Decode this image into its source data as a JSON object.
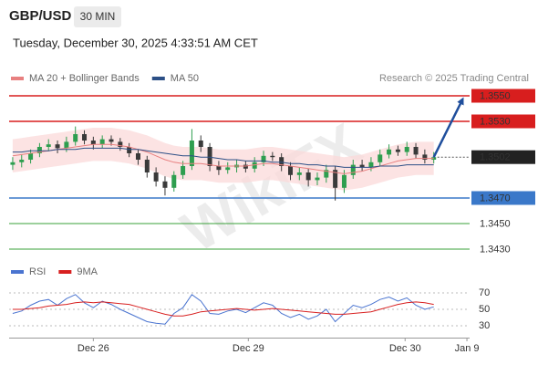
{
  "header": {
    "symbol": "GBP/USD",
    "timeframe": "30 MIN",
    "datetime": "Tuesday, December 30, 2025 4:33:51 AM CET",
    "watermark": "WikiFX"
  },
  "chart_data": [
    {
      "type": "candlestick",
      "source": "Research © 2025 Trading Central",
      "x": [
        0,
        1,
        2,
        3,
        4,
        5,
        6,
        7,
        8,
        9,
        10,
        11,
        12,
        13,
        14,
        15,
        16,
        17,
        18,
        19,
        20,
        21,
        22,
        23,
        24,
        25,
        26,
        27,
        28,
        29,
        30,
        31,
        32,
        33,
        34,
        35,
        36,
        37,
        38,
        39,
        40,
        41,
        42,
        43,
        44,
        45,
        46,
        47
      ],
      "xlim": [
        -0.4,
        51
      ],
      "ylim": [
        1.342,
        1.356
      ],
      "up_color": "#2e9e4f",
      "down_color": "#3a3a3a",
      "candles": {
        "open": [
          1.3496,
          1.3498,
          1.35,
          1.3505,
          1.351,
          1.3512,
          1.3509,
          1.3514,
          1.352,
          1.3515,
          1.3512,
          1.3516,
          1.3514,
          1.351,
          1.3505,
          1.35,
          1.349,
          1.3483,
          1.3478,
          1.3488,
          1.3495,
          1.3515,
          1.351,
          1.3495,
          1.3492,
          1.3494,
          1.3496,
          1.3493,
          1.3498,
          1.3503,
          1.3502,
          1.3495,
          1.3488,
          1.349,
          1.3484,
          1.3486,
          1.3492,
          1.3478,
          1.3488,
          1.3496,
          1.3494,
          1.3498,
          1.3504,
          1.3508,
          1.3506,
          1.351,
          1.3504,
          1.35
        ],
        "high": [
          1.3502,
          1.3504,
          1.3508,
          1.3513,
          1.3516,
          1.3515,
          1.3518,
          1.3526,
          1.3523,
          1.3518,
          1.3519,
          1.3519,
          1.3517,
          1.3513,
          1.3508,
          1.3503,
          1.3494,
          1.3487,
          1.3491,
          1.3499,
          1.3524,
          1.3519,
          1.3513,
          1.3499,
          1.3498,
          1.35,
          1.3499,
          1.3502,
          1.3507,
          1.3506,
          1.3505,
          1.3498,
          1.3494,
          1.3493,
          1.349,
          1.3496,
          1.3495,
          1.3492,
          1.35,
          1.35,
          1.3502,
          1.3508,
          1.3512,
          1.3511,
          1.3514,
          1.3513,
          1.3508,
          1.3506
        ],
        "low": [
          1.3492,
          1.3494,
          1.3497,
          1.3502,
          1.3507,
          1.3505,
          1.3506,
          1.3511,
          1.3512,
          1.3508,
          1.3509,
          1.3511,
          1.3507,
          1.3502,
          1.3496,
          1.3486,
          1.3479,
          1.3472,
          1.3475,
          1.3485,
          1.3492,
          1.3506,
          1.3491,
          1.3488,
          1.3489,
          1.349,
          1.349,
          1.349,
          1.3495,
          1.3499,
          1.3491,
          1.3484,
          1.3484,
          1.3479,
          1.348,
          1.3482,
          1.3468,
          1.3474,
          1.3485,
          1.3491,
          1.3491,
          1.3495,
          1.3501,
          1.3503,
          1.3503,
          1.3501,
          1.3497,
          1.3497
        ],
        "close": [
          1.3498,
          1.35,
          1.3505,
          1.351,
          1.3512,
          1.3509,
          1.3514,
          1.352,
          1.3515,
          1.3512,
          1.3516,
          1.3514,
          1.351,
          1.3505,
          1.35,
          1.349,
          1.3483,
          1.3478,
          1.3488,
          1.3495,
          1.3515,
          1.351,
          1.3495,
          1.3492,
          1.3494,
          1.3496,
          1.3493,
          1.3498,
          1.3503,
          1.3502,
          1.3495,
          1.3488,
          1.349,
          1.3484,
          1.3486,
          1.3492,
          1.3478,
          1.3488,
          1.3496,
          1.3494,
          1.3498,
          1.3504,
          1.3508,
          1.3506,
          1.351,
          1.3504,
          1.35,
          1.3502
        ]
      },
      "series": [
        {
          "name": "MA 20 + Bollinger Bands",
          "color": "#e88080",
          "band_color": "#fbdada",
          "values": [
            1.3503,
            1.3504,
            1.3505,
            1.3506,
            1.3507,
            1.3508,
            1.3509,
            1.351,
            1.3511,
            1.3512,
            1.3512,
            1.3512,
            1.3511,
            1.351,
            1.3508,
            1.3506,
            1.3503,
            1.35,
            1.3498,
            1.3497,
            1.3497,
            1.3497,
            1.3496,
            1.3495,
            1.3495,
            1.3495,
            1.3495,
            1.3496,
            1.3497,
            1.3497,
            1.3496,
            1.3495,
            1.3494,
            1.3493,
            1.3492,
            1.3491,
            1.349,
            1.3489,
            1.349,
            1.3491,
            1.3493,
            1.3495,
            1.3497,
            1.3499,
            1.35,
            1.3501,
            1.3501,
            1.3501
          ],
          "bands": {
            "upper": [
              1.3516,
              1.3517,
              1.3518,
              1.3519,
              1.352,
              1.3521,
              1.3522,
              1.3523,
              1.3524,
              1.3525,
              1.3525,
              1.3525,
              1.3524,
              1.3523,
              1.3521,
              1.3519,
              1.3516,
              1.3513,
              1.3511,
              1.351,
              1.351,
              1.351,
              1.3509,
              1.3508,
              1.3508,
              1.3508,
              1.3508,
              1.3509,
              1.351,
              1.351,
              1.3509,
              1.3508,
              1.3507,
              1.3506,
              1.3505,
              1.3504,
              1.3503,
              1.3502,
              1.3503,
              1.3504,
              1.3506,
              1.3508,
              1.351,
              1.3512,
              1.3513,
              1.3514,
              1.3514,
              1.3514
            ],
            "lower": [
              1.349,
              1.3491,
              1.3492,
              1.3493,
              1.3494,
              1.3495,
              1.3496,
              1.3497,
              1.3498,
              1.3499,
              1.3499,
              1.3499,
              1.3498,
              1.3497,
              1.3495,
              1.3493,
              1.349,
              1.3487,
              1.3485,
              1.3484,
              1.3484,
              1.3484,
              1.3483,
              1.3482,
              1.3482,
              1.3482,
              1.3482,
              1.3483,
              1.3484,
              1.3484,
              1.3483,
              1.3482,
              1.3481,
              1.348,
              1.3479,
              1.3478,
              1.3477,
              1.3476,
              1.3477,
              1.3478,
              1.348,
              1.3482,
              1.3484,
              1.3486,
              1.3487,
              1.3488,
              1.3488,
              1.3488
            ]
          }
        },
        {
          "name": "MA 50",
          "color": "#2c4f86",
          "values": [
            1.3506,
            1.3506,
            1.3507,
            1.3507,
            1.3507,
            1.3508,
            1.3508,
            1.3508,
            1.3509,
            1.3509,
            1.3509,
            1.3509,
            1.3509,
            1.3508,
            1.3508,
            1.3507,
            1.3506,
            1.3505,
            1.3504,
            1.3503,
            1.3503,
            1.3502,
            1.3502,
            1.3501,
            1.35,
            1.35,
            1.3499,
            1.3499,
            1.3499,
            1.3498,
            1.3498,
            1.3497,
            1.3497,
            1.3496,
            1.3496,
            1.3495,
            1.3495,
            1.3494,
            1.3494,
            1.3494,
            1.3494,
            1.3495,
            1.3495,
            1.3495,
            1.3496,
            1.3496,
            1.3496,
            1.3496
          ]
        }
      ],
      "levels": [
        {
          "value": 1.355,
          "label": "1.3550",
          "color": "#d81e1e",
          "line": "solid",
          "label_style": "box"
        },
        {
          "value": 1.353,
          "label": "1.3530",
          "color": "#d81e1e",
          "line": "solid",
          "label_style": "box"
        },
        {
          "value": 1.3502,
          "label": "1.3502",
          "color": "#222222",
          "line": "dotted",
          "label_style": "box"
        },
        {
          "value": 1.347,
          "label": "1.3470",
          "color": "#3a78c9",
          "line": "solid",
          "label_style": "box"
        },
        {
          "value": 1.345,
          "label": "1.3450",
          "color": "#3aa03a",
          "line": "solid",
          "label_style": "text"
        },
        {
          "value": 1.343,
          "label": "1.3430",
          "color": "#3aa03a",
          "line": "solid",
          "label_style": "text"
        }
      ],
      "projection": {
        "color": "#1f4e9c",
        "x": [
          47,
          50.2
        ],
        "y": [
          1.3502,
          1.3547
        ]
      }
    },
    {
      "type": "line",
      "x": [
        0,
        1,
        2,
        3,
        4,
        5,
        6,
        7,
        8,
        9,
        10,
        11,
        12,
        13,
        14,
        15,
        16,
        17,
        18,
        19,
        20,
        21,
        22,
        23,
        24,
        25,
        26,
        27,
        28,
        29,
        30,
        31,
        32,
        33,
        34,
        35,
        36,
        37,
        38,
        39,
        40,
        41,
        42,
        43,
        44,
        45,
        46,
        47
      ],
      "xlim": [
        -0.4,
        51
      ],
      "ylim": [
        15,
        88
      ],
      "yticks": [
        70,
        50,
        30
      ],
      "grid": true,
      "xticks": [
        {
          "value": 9,
          "label": "Dec 26"
        },
        {
          "value": 26.3,
          "label": "Dec 29"
        },
        {
          "value": 43.8,
          "label": "Dec 30"
        },
        {
          "value": 50.7,
          "label": "Jan 9"
        }
      ],
      "series": [
        {
          "name": "RSI",
          "color": "#4a74d0",
          "values": [
            45,
            48,
            55,
            60,
            62,
            55,
            63,
            68,
            58,
            52,
            60,
            56,
            50,
            45,
            40,
            35,
            33,
            32,
            45,
            52,
            68,
            60,
            45,
            44,
            48,
            50,
            46,
            52,
            58,
            55,
            45,
            40,
            44,
            38,
            42,
            50,
            35,
            45,
            55,
            52,
            56,
            62,
            65,
            60,
            64,
            55,
            50,
            53
          ]
        },
        {
          "name": "9MA",
          "color": "#d82020",
          "values": [
            50,
            50,
            51,
            52,
            54,
            55,
            56,
            58,
            59,
            58,
            59,
            58,
            57,
            56,
            53,
            50,
            47,
            44,
            42,
            42,
            44,
            47,
            48,
            49,
            50,
            51,
            50,
            49,
            50,
            51,
            50,
            49,
            48,
            47,
            46,
            45,
            44,
            44,
            45,
            46,
            47,
            50,
            53,
            56,
            58,
            59,
            58,
            56
          ]
        }
      ]
    }
  ]
}
